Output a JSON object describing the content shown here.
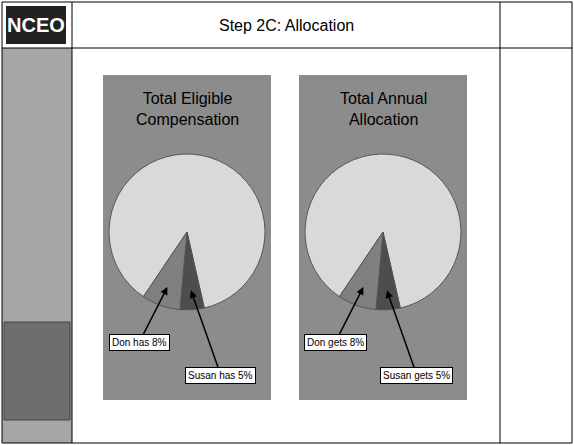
{
  "header": {
    "logo": "NCEO",
    "title": "Step 2C: Allocation"
  },
  "chart_data": [
    {
      "type": "pie",
      "title": "Total Eligible Compensation",
      "values": [
        87,
        5,
        8
      ],
      "value_labels": [
        null,
        "Susan has 5%",
        "Don has 8%"
      ],
      "colors": [
        "#d9d9d9",
        "#4d4d4d",
        "#808080"
      ],
      "data_labels": true
    },
    {
      "type": "pie",
      "title": "Total Annual Allocation",
      "values": [
        87,
        5,
        8
      ],
      "value_labels": [
        null,
        "Susan gets 5%",
        "Don gets 8%"
      ],
      "colors": [
        "#d9d9d9",
        "#4d4d4d",
        "#808080"
      ],
      "data_labels": true
    }
  ]
}
